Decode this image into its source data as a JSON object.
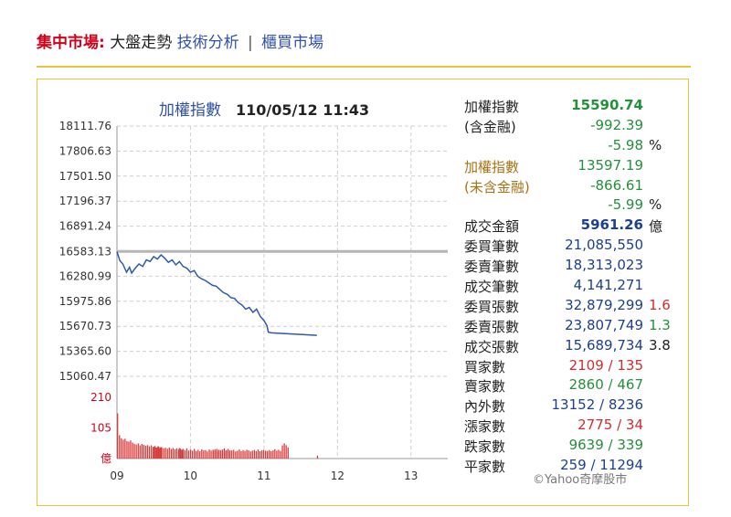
{
  "nav": {
    "title": "集中市場:",
    "current": "大盤走勢",
    "link_tech": "技術分析",
    "separator": "|",
    "link_otc": "櫃買市場"
  },
  "chart_data": {
    "type": "line",
    "title": "加權指數",
    "timestamp": "110/05/12 11:43",
    "y_ticks": [
      "18111.76",
      "17806.63",
      "17501.50",
      "17196.37",
      "16891.24",
      "16583.13",
      "16280.99",
      "15975.86",
      "15670.73",
      "15365.60",
      "15060.47"
    ],
    "ylim": [
      15060.47,
      18111.76
    ],
    "reference_value": 16583.13,
    "x_ticks": [
      "09",
      "10",
      "11",
      "12",
      "13"
    ],
    "x_range_hours": [
      9,
      13.5
    ],
    "series": [
      {
        "x": [
          9.0,
          9.04,
          9.08,
          9.13,
          9.17,
          9.2,
          9.25,
          9.3,
          9.35,
          9.4,
          9.45,
          9.5,
          9.55,
          9.6,
          9.65,
          9.7,
          9.75,
          9.8,
          9.85,
          9.9,
          9.95,
          10.0,
          10.05,
          10.1,
          10.15,
          10.2,
          10.25,
          10.3,
          10.35,
          10.4,
          10.45,
          10.5,
          10.55,
          10.6,
          10.65,
          10.7,
          10.75,
          10.8,
          10.85,
          10.9,
          10.95,
          11.0,
          11.04,
          11.06,
          11.1,
          11.72
        ],
        "values": [
          16580,
          16470,
          16430,
          16330,
          16390,
          16320,
          16380,
          16430,
          16400,
          16480,
          16460,
          16520,
          16490,
          16540,
          16500,
          16450,
          16480,
          16420,
          16460,
          16400,
          16380,
          16330,
          16350,
          16280,
          16250,
          16230,
          16200,
          16170,
          16160,
          16120,
          16080,
          16060,
          16020,
          16010,
          15960,
          15930,
          15880,
          15900,
          15840,
          15880,
          15790,
          15740,
          15680,
          15600,
          15590,
          15560
        ]
      }
    ],
    "volume": {
      "unit_label": "億",
      "ticks": [
        "210",
        "105"
      ],
      "ymax": 210,
      "bars": [
        {
          "x": 9.0,
          "values": [
            155,
            80,
            70,
            65,
            68,
            60,
            58,
            62,
            55,
            50,
            48,
            52,
            45,
            50,
            47,
            44,
            46,
            42,
            45,
            40,
            43,
            38,
            41,
            39
          ]
        },
        {
          "x": 9.5,
          "values": [
            40,
            38,
            42,
            36,
            39,
            35,
            37,
            34,
            38,
            33,
            36,
            32,
            35,
            31,
            34,
            30
          ]
        },
        {
          "x": 9.84,
          "values": [
            36,
            30,
            33,
            29,
            35,
            28,
            31,
            27,
            33,
            26,
            30,
            25,
            32,
            28,
            29,
            24,
            31,
            27,
            30,
            26,
            33,
            25,
            29,
            24,
            35,
            27,
            30,
            28
          ]
        },
        {
          "x": 10.3,
          "values": [
            28,
            32,
            26,
            30,
            27,
            31,
            25,
            29,
            33,
            26,
            28,
            30,
            24,
            27,
            31,
            25,
            29,
            26,
            30,
            28,
            24,
            27,
            29,
            26,
            31,
            25,
            28,
            30,
            27,
            26,
            29,
            25,
            28,
            32,
            27,
            30,
            26,
            45,
            52,
            46,
            38
          ]
        },
        {
          "x": 11.72,
          "values": [
            10
          ]
        }
      ]
    }
  },
  "stats": [
    {
      "label": "加權指數",
      "value": "15590.74",
      "label_color": "dark",
      "value_color": "green",
      "bold": true
    },
    {
      "label": "(含金融)",
      "value": "-992.39",
      "label_color": "dark",
      "value_color": "green"
    },
    {
      "label": "",
      "value": "-5.98",
      "unit": "%",
      "value_color": "green"
    },
    {
      "label": "加權指數",
      "value": "13597.19",
      "label_color": "brown",
      "value_color": "green"
    },
    {
      "label": "(未含金融)",
      "value": "-866.61",
      "label_color": "brown",
      "value_color": "green"
    },
    {
      "label": "",
      "value": "-5.99",
      "unit": "%",
      "value_color": "green"
    },
    {
      "label": "成交金額",
      "value": "5961.26",
      "unit": "億",
      "label_color": "dark",
      "value_color": "blue",
      "bold": true
    },
    {
      "label": "委買筆數",
      "value": "21,085,550",
      "label_color": "dark",
      "value_color": "blue"
    },
    {
      "label": "委賣筆數",
      "value": "18,313,023",
      "label_color": "dark",
      "value_color": "blue"
    },
    {
      "label": "成交筆數",
      "value": "4,141,271",
      "label_color": "dark",
      "value_color": "blue"
    },
    {
      "label": "委買張數",
      "value": "32,879,299",
      "unit": "1.6",
      "unit_color": "red",
      "label_color": "dark",
      "value_color": "blue"
    },
    {
      "label": "委賣張數",
      "value": "23,807,749",
      "unit": "1.3",
      "unit_color": "green",
      "label_color": "dark",
      "value_color": "blue"
    },
    {
      "label": "成交張數",
      "value": "15,689,734",
      "unit": "3.8",
      "unit_color": "dark",
      "label_color": "dark",
      "value_color": "blue"
    },
    {
      "label": "買家數",
      "value": "2109 / 135",
      "label_color": "dark",
      "value_color": "red"
    },
    {
      "label": "賣家數",
      "value": "2860 / 467",
      "label_color": "dark",
      "value_color": "green"
    },
    {
      "label": "內外數",
      "value": "13152 / 8236",
      "label_color": "dark",
      "value_color": "blue"
    },
    {
      "label": "漲家數",
      "value": "2775 / 34",
      "label_color": "dark",
      "value_color": "red"
    },
    {
      "label": "跌家數",
      "value": "9639 / 339",
      "label_color": "dark",
      "value_color": "green"
    },
    {
      "label": "平家數",
      "value": "259 / 11294",
      "label_color": "dark",
      "value_color": "blue"
    }
  ],
  "copyright": "©Yahoo奇摩股市",
  "colors": {
    "line": "#2e5aa8",
    "reference_line": "#b5b5b5",
    "volume_bar": "#d93a3a",
    "grid": "#cfcfcf",
    "axis_text": "#333333",
    "panel_border": "#e8c43a"
  }
}
